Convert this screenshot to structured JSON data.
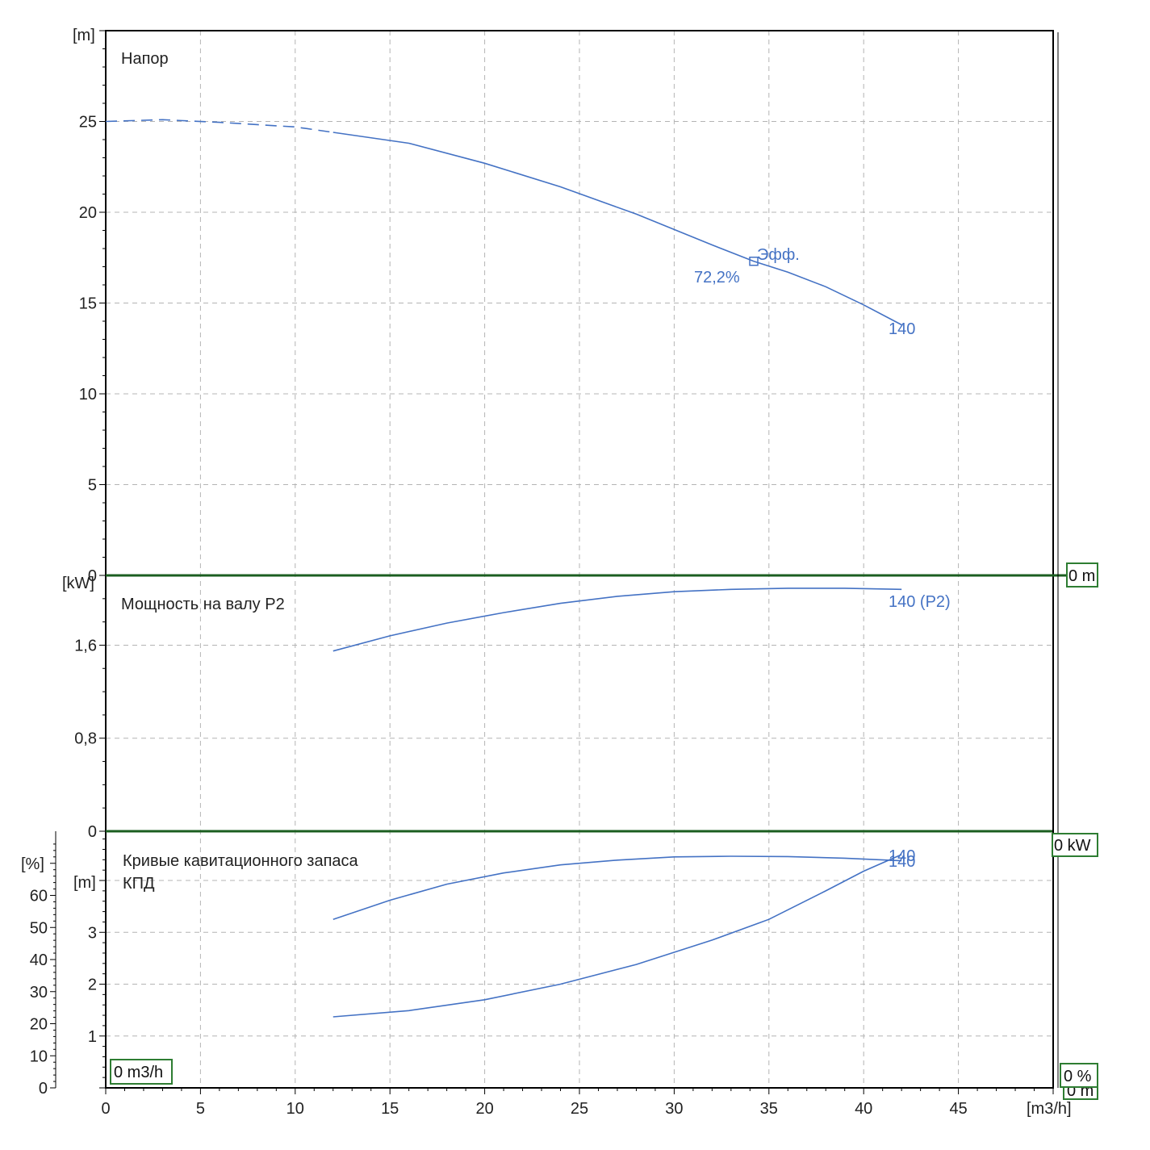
{
  "colors": {
    "curve": "#4472C4",
    "grid": "#b4b4b4",
    "axis": "#000000",
    "marker_box": "#2e7d32",
    "divider": "#1b5e20"
  },
  "x_axis": {
    "unit": "[m3/h]",
    "ticks": [
      "0",
      "5",
      "10",
      "15",
      "20",
      "25",
      "30",
      "35",
      "40",
      "45"
    ],
    "xlim": [
      0,
      50
    ]
  },
  "head_panel": {
    "title": "Напор",
    "unit": "[m]",
    "ticks": [
      "0",
      "5",
      "10",
      "15",
      "20",
      "25"
    ],
    "end_label": "140",
    "eff_label": "Эфф.",
    "eff_value": "72,2%",
    "zero_box": "0 m"
  },
  "power_panel": {
    "title": "Мощность на валу P2",
    "unit": "[kW]",
    "ticks": [
      "0",
      "0,8",
      "1,6"
    ],
    "end_label": "140 (P2)",
    "zero_box": "0 kW"
  },
  "npsh_panel": {
    "title_line1": "Кривые кавитационного запаса",
    "title_line2": "КПД",
    "unit_pct": "[%]",
    "unit_m": "[m]",
    "pct_ticks": [
      "0",
      "10",
      "20",
      "30",
      "40",
      "50",
      "60"
    ],
    "m_ticks": [
      "1",
      "2",
      "3"
    ],
    "end_label_eff": "140",
    "end_label_npsh": "140",
    "zero_box_x": "0 m3/h",
    "zero_box_pct": "0 %",
    "zero_box_m": "0 m"
  },
  "chart_data": [
    {
      "type": "line",
      "title": "Напор",
      "xlabel": "[m3/h]",
      "ylabel": "[m]",
      "xlim": [
        0,
        50
      ],
      "ylim": [
        0,
        30
      ],
      "grid": true,
      "series": [
        {
          "name": "140",
          "dashed_until_x": 12,
          "x": [
            0,
            3,
            6,
            10,
            12,
            16,
            20,
            24,
            28,
            32,
            34.2,
            36,
            38,
            40,
            42
          ],
          "y": [
            25.0,
            25.1,
            24.95,
            24.7,
            24.4,
            23.8,
            22.7,
            21.4,
            19.9,
            18.2,
            17.3,
            16.7,
            15.9,
            14.9,
            13.8
          ]
        }
      ],
      "annotations": [
        {
          "text": "Эфф.",
          "x": 34.2,
          "y": 17.3
        },
        {
          "text": "72,2%",
          "x": 34.2,
          "y": 17.3
        }
      ]
    },
    {
      "type": "line",
      "title": "Мощность на валу P2",
      "xlabel": "[m3/h]",
      "ylabel": "[kW]",
      "xlim": [
        0,
        50
      ],
      "ylim": [
        0,
        2.2
      ],
      "grid": true,
      "series": [
        {
          "name": "140 (P2)",
          "x": [
            12,
            15,
            18,
            21,
            24,
            27,
            30,
            33,
            36,
            39,
            42
          ],
          "y": [
            1.55,
            1.68,
            1.79,
            1.88,
            1.96,
            2.02,
            2.06,
            2.08,
            2.09,
            2.09,
            2.08
          ]
        }
      ]
    },
    {
      "type": "line",
      "title": "Кривые кавитационного запаса / КПД",
      "xlabel": "[m3/h]",
      "ylabel": "[%] / [m]",
      "xlim": [
        0,
        50
      ],
      "ylim_pct": [
        0,
        80
      ],
      "ylim_m": [
        0,
        4.95
      ],
      "grid": true,
      "series": [
        {
          "name": "КПД 140",
          "axis": "pct",
          "x": [
            12,
            15,
            18,
            21,
            24,
            27,
            30,
            33,
            36,
            39,
            42
          ],
          "y": [
            52.5,
            58.5,
            63.5,
            67.0,
            69.5,
            71.0,
            72.0,
            72.2,
            72.1,
            71.6,
            70.8
          ]
        },
        {
          "name": "NPSH 140",
          "axis": "m",
          "x": [
            12,
            16,
            20,
            24,
            28,
            32,
            35,
            38,
            40,
            42
          ],
          "y": [
            1.37,
            1.49,
            1.7,
            2.0,
            2.38,
            2.85,
            3.25,
            3.8,
            4.18,
            4.5
          ]
        }
      ]
    }
  ]
}
